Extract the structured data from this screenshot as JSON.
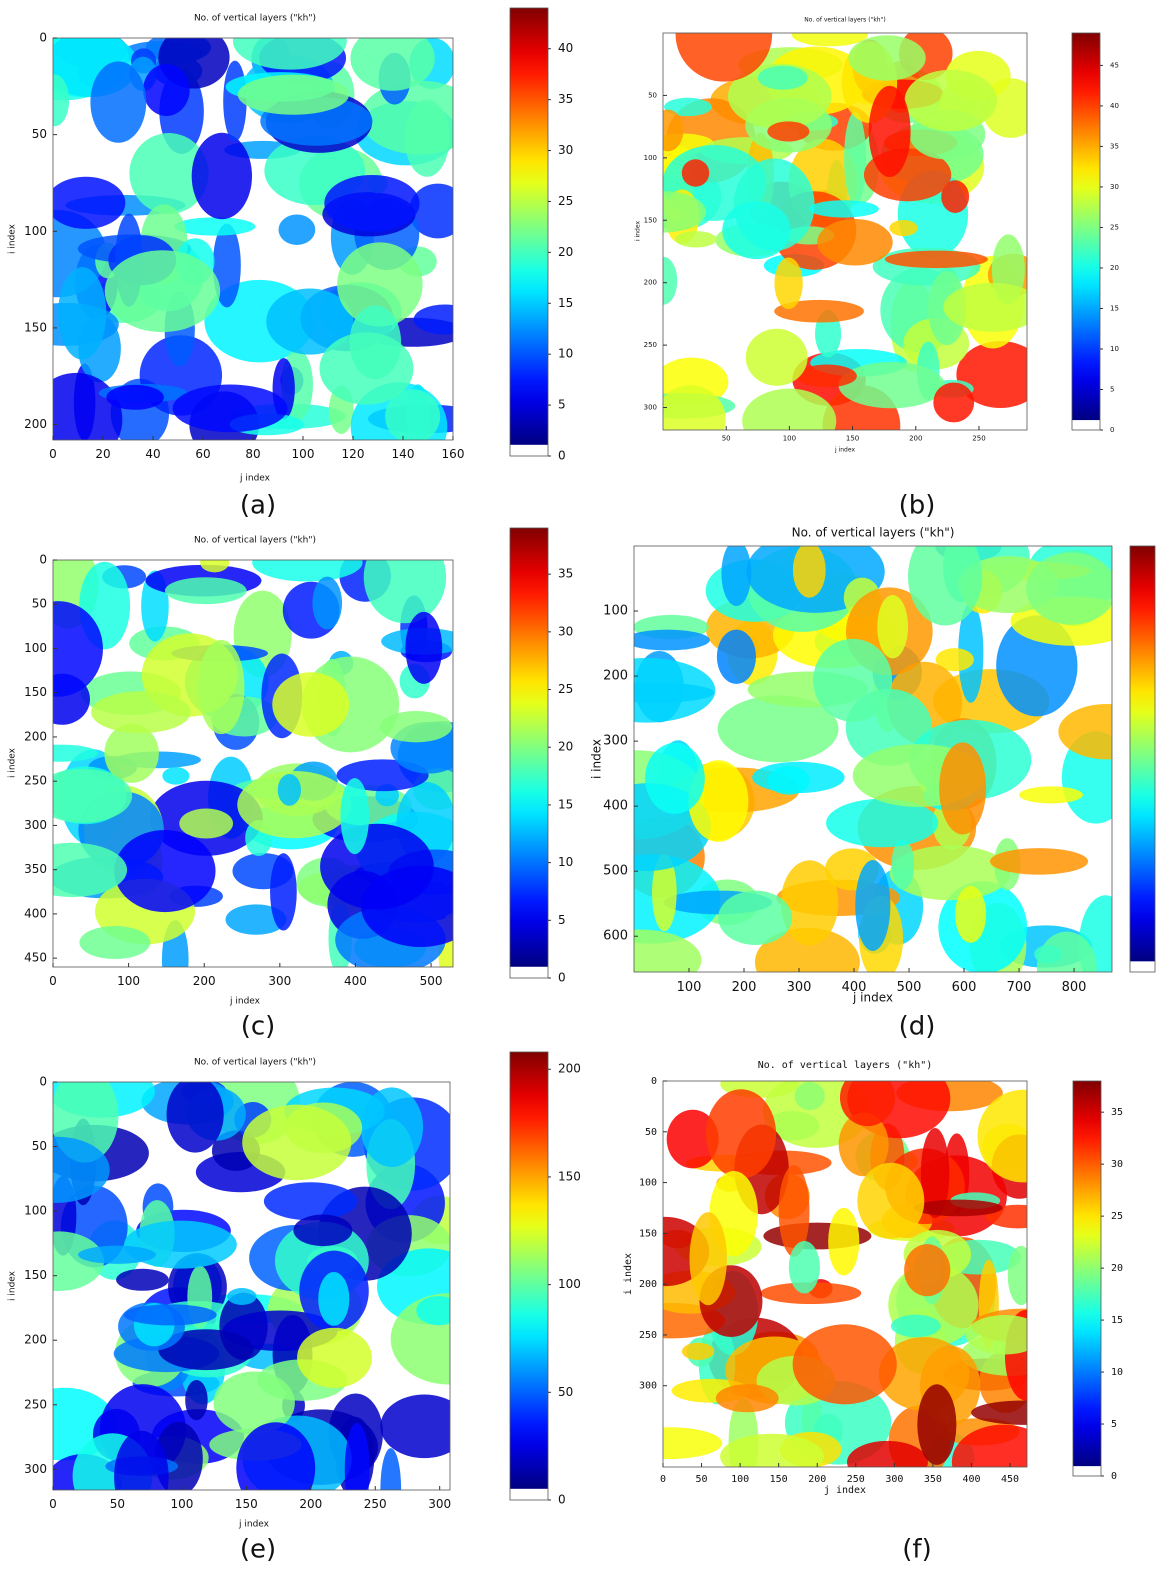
{
  "chart_data": [
    {
      "type": "heatmap",
      "title": "No. of vertical layers (\"kh\")",
      "xlabel": "j index",
      "ylabel": "i index",
      "caption": "(a)",
      "xlim": [
        0,
        160
      ],
      "xticks": [
        0,
        20,
        40,
        60,
        80,
        100,
        120,
        140,
        160
      ],
      "ylim": [
        0,
        208
      ],
      "yticks": [
        0,
        50,
        100,
        150,
        200
      ],
      "yreverse": true,
      "colorbar": true,
      "clim": [
        0,
        44
      ],
      "cticks": [
        0,
        5,
        10,
        15,
        20,
        25,
        30,
        35,
        40
      ]
    },
    {
      "type": "heatmap",
      "title": "No. of vertical layers (\"kh\")",
      "xlabel": "j index",
      "ylabel": "i index",
      "caption": "(b)",
      "xlim": [
        0,
        288
      ],
      "xticks": [
        50,
        100,
        150,
        200,
        250
      ],
      "ylim": [
        0,
        318
      ],
      "yticks": [
        50,
        100,
        150,
        200,
        250,
        300
      ],
      "yreverse": true,
      "colorbar": true,
      "clim": [
        0,
        49
      ],
      "cticks": [
        0,
        5,
        10,
        15,
        20,
        25,
        30,
        35,
        40,
        45
      ]
    },
    {
      "type": "heatmap",
      "title": "No. of vertical layers (\"kh\")",
      "xlabel": "j index",
      "ylabel": "i index",
      "caption": "(c)",
      "xlim": [
        0,
        529
      ],
      "xticks": [
        0,
        100,
        200,
        300,
        400,
        500
      ],
      "ylim": [
        0,
        460
      ],
      "yticks": [
        0,
        50,
        100,
        150,
        200,
        250,
        300,
        350,
        400,
        450
      ],
      "yreverse": true,
      "colorbar": true,
      "clim": [
        0,
        39
      ],
      "cticks": [
        0,
        5,
        10,
        15,
        20,
        25,
        30,
        35
      ]
    },
    {
      "type": "heatmap",
      "title": "No. of vertical layers (\"kh\")",
      "xlabel": "j index",
      "ylabel": "i index",
      "caption": "(d)",
      "xlim": [
        0,
        869
      ],
      "xticks": [
        100,
        200,
        300,
        400,
        500,
        600,
        700,
        800
      ],
      "ylim": [
        0,
        655
      ],
      "yticks": [
        100,
        200,
        300,
        400,
        500,
        600
      ],
      "yreverse": true,
      "colorbar": true
    },
    {
      "type": "heatmap",
      "title": "No. of vertical layers (\"kh\")",
      "xlabel": "j index",
      "ylabel": "i index",
      "caption": "(e)",
      "xlim": [
        0,
        308
      ],
      "xticks": [
        0,
        50,
        100,
        150,
        200,
        250,
        300
      ],
      "ylim": [
        0,
        316
      ],
      "yticks": [
        0,
        50,
        100,
        150,
        200,
        250,
        300
      ],
      "yreverse": true,
      "colorbar": true,
      "clim": [
        0,
        208
      ],
      "cticks": [
        0,
        50,
        100,
        150,
        200
      ]
    },
    {
      "type": "heatmap",
      "title": "No. of vertical layers (\"kh\")",
      "xlabel": "j index",
      "ylabel": "i index",
      "caption": "(f)",
      "xlim": [
        0,
        472
      ],
      "xticks": [
        0,
        50,
        100,
        150,
        200,
        250,
        300,
        350,
        400,
        450
      ],
      "ylim": [
        0,
        380
      ],
      "yticks": [
        0,
        50,
        100,
        150,
        200,
        250,
        300
      ],
      "yreverse": true,
      "colorbar": true,
      "clim": [
        0,
        38
      ],
      "cticks": [
        0,
        5,
        10,
        15,
        20,
        25,
        30,
        35
      ]
    }
  ]
}
